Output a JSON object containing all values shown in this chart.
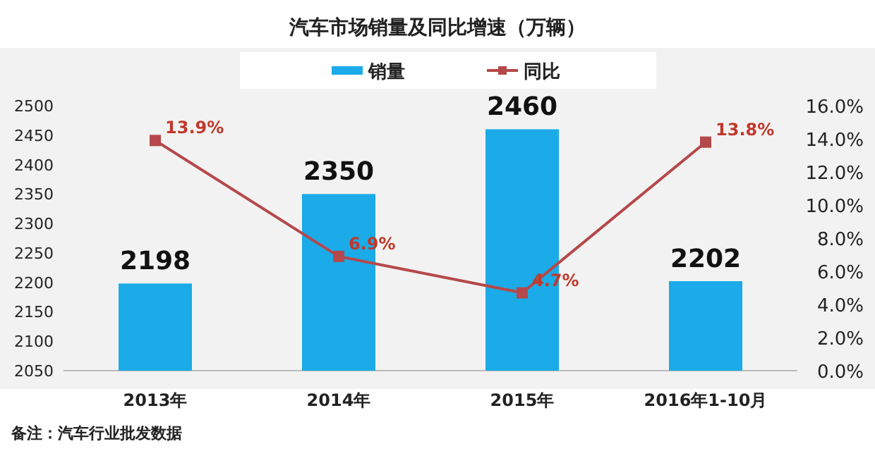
{
  "chart_data": {
    "type": "bar",
    "title": "汽车市场销量及同比增速（万辆）",
    "categories": [
      "2013年",
      "2014年",
      "2015年",
      "2016年1-10月"
    ],
    "series": [
      {
        "name": "销量",
        "color": "#1aabe8",
        "values": [
          2198,
          2350,
          2460,
          2202
        ],
        "value_labels": [
          "2198",
          "2350",
          "2460",
          "2202"
        ]
      },
      {
        "name": "同比",
        "type": "line",
        "axis": "y2",
        "color": "#b5484a",
        "marker": "square",
        "values": [
          13.9,
          6.9,
          4.7,
          13.8
        ],
        "value_labels": [
          "13.9%",
          "6.9%",
          "4.7%",
          "13.8%"
        ]
      }
    ],
    "ylim": [
      2050,
      2500
    ],
    "yticks": [
      2050,
      2100,
      2150,
      2200,
      2250,
      2300,
      2350,
      2400,
      2450,
      2500
    ],
    "y2lim": [
      0,
      16
    ],
    "y2ticks": [
      {
        "value": 0,
        "label": "0.0%"
      },
      {
        "value": 2,
        "label": "2.0%"
      },
      {
        "value": 4,
        "label": "4.0%"
      },
      {
        "value": 6,
        "label": "6.0%"
      },
      {
        "value": 8,
        "label": "8.0%"
      },
      {
        "value": 10,
        "label": "10.0%"
      },
      {
        "value": 12,
        "label": "12.0%"
      },
      {
        "value": 14,
        "label": "14.0%"
      },
      {
        "value": 16,
        "label": "16.0%"
      }
    ],
    "legend": "top",
    "annotations": [
      "备注：汽车行业批发数据"
    ]
  }
}
